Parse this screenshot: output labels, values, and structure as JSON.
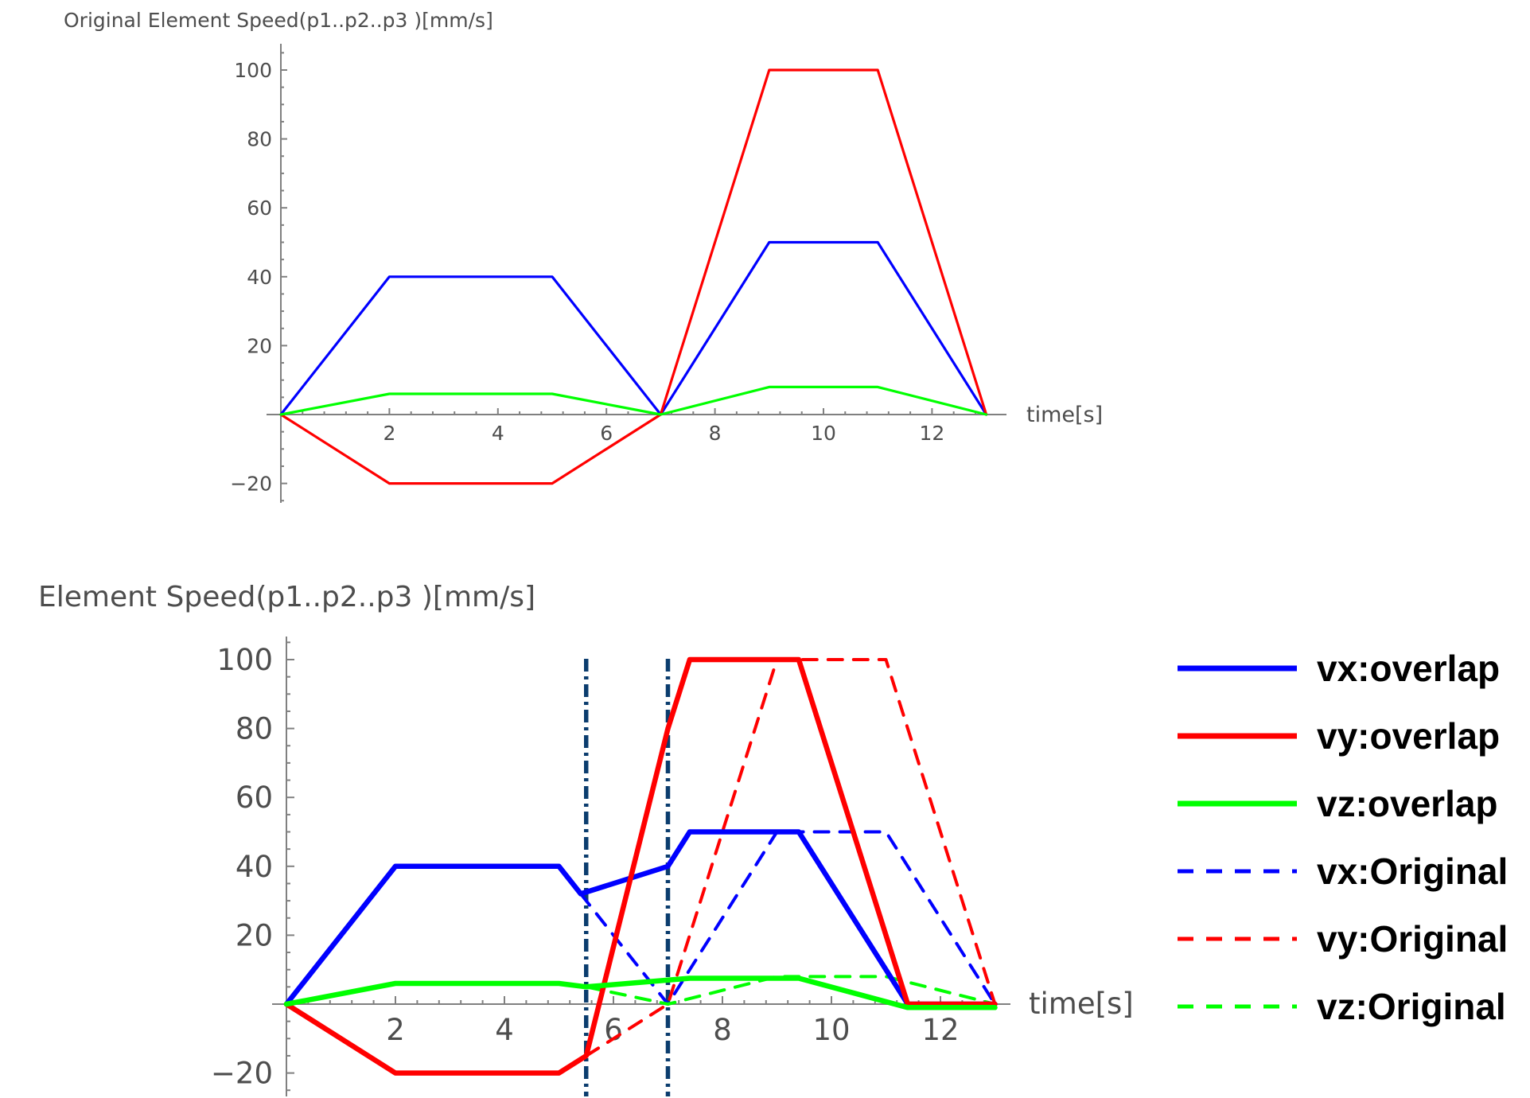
{
  "chart_data": [
    {
      "type": "line",
      "title": "Original Element Speed(p1..p2..p3 )[mm/s]",
      "xlabel": "time[s]",
      "ylabel": "",
      "xlim": [
        0,
        13.4
      ],
      "ylim": [
        -26,
        107
      ],
      "xticks": [
        2,
        4,
        6,
        8,
        10,
        12
      ],
      "yticks": [
        -20,
        20,
        40,
        60,
        80,
        100
      ],
      "tick_labels_x": [
        "2",
        "4",
        "6",
        "8",
        "10",
        "12"
      ],
      "tick_labels_y": [
        "−20",
        "20",
        "40",
        "60",
        "80",
        "100"
      ],
      "series": [
        {
          "color": "#0000ff",
          "x": [
            0,
            2,
            5,
            7,
            9,
            11,
            13
          ],
          "y": [
            0,
            40,
            40,
            0,
            50,
            50,
            0
          ]
        },
        {
          "color": "#ff0000",
          "x": [
            0,
            2,
            5,
            7,
            9,
            11,
            13
          ],
          "y": [
            0,
            -20,
            -20,
            0,
            100,
            100,
            0
          ]
        },
        {
          "color": "#00ff00",
          "x": [
            0,
            2,
            5,
            7,
            9,
            11,
            13
          ],
          "y": [
            0,
            6,
            6,
            0,
            8,
            8,
            0
          ]
        }
      ]
    },
    {
      "type": "line",
      "title": "Element Speed(p1..p2..p3 )[mm/s]",
      "xlabel": "time[s]",
      "ylabel": "",
      "xlim": [
        0,
        13.4
      ],
      "ylim": [
        -26,
        107
      ],
      "xticks": [
        2,
        4,
        6,
        8,
        10,
        12
      ],
      "yticks": [
        -20,
        20,
        40,
        60,
        80,
        100
      ],
      "tick_labels_x": [
        "2",
        "4",
        "6",
        "8",
        "10",
        "12"
      ],
      "tick_labels_y": [
        "−20",
        "20",
        "40",
        "60",
        "80",
        "100"
      ],
      "vlines": [
        5.5,
        7.0
      ],
      "legend_position": "right",
      "series": [
        {
          "name": "vx:overlap",
          "color": "#0000ff",
          "dash": "solid",
          "x": [
            0,
            2,
            5,
            5.4,
            7,
            7.4,
            9.4,
            11.4,
            13
          ],
          "y": [
            0,
            40,
            40,
            32,
            40,
            50,
            50,
            0,
            0
          ]
        },
        {
          "name": "vy:overlap",
          "color": "#ff0000",
          "dash": "solid",
          "x": [
            0,
            2,
            5,
            5.5,
            7,
            7.4,
            9.4,
            11.4,
            13
          ],
          "y": [
            0,
            -20,
            -20,
            -15,
            80,
            100,
            100,
            0,
            0
          ]
        },
        {
          "name": "vz:overlap",
          "color": "#00ff00",
          "dash": "solid",
          "x": [
            0,
            2,
            5,
            5.5,
            7.4,
            9.4,
            11.4,
            13
          ],
          "y": [
            0,
            6,
            6,
            5,
            7.5,
            7.5,
            -1,
            -1
          ]
        },
        {
          "name": "vx:Original",
          "color": "#0000ff",
          "dash": "dashed",
          "x": [
            5.4,
            7,
            9,
            11,
            13
          ],
          "y": [
            32,
            0,
            50,
            50,
            0
          ]
        },
        {
          "name": "vy:Original",
          "color": "#ff0000",
          "dash": "dashed",
          "x": [
            5.5,
            7,
            9,
            11,
            13
          ],
          "y": [
            -15,
            0,
            100,
            100,
            0
          ]
        },
        {
          "name": "vz:Original",
          "color": "#00ff00",
          "dash": "dashed",
          "x": [
            5.5,
            7,
            9,
            11,
            13
          ],
          "y": [
            5,
            0,
            8,
            8,
            0
          ]
        }
      ]
    }
  ]
}
